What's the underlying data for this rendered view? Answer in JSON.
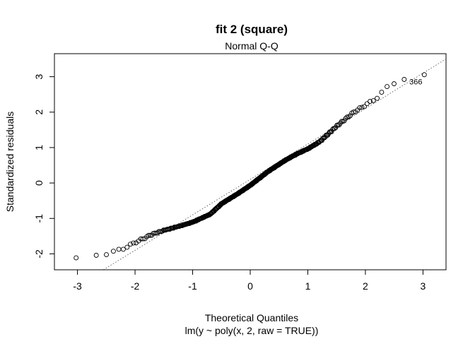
{
  "chart_data": {
    "type": "scatter",
    "title": "fit 2 (square)",
    "subtitle": "Normal Q-Q",
    "xlabel": "Theoretical Quantiles",
    "xlabel_sub": "lm(y ~ poly(x, 2, raw = TRUE))",
    "ylabel": "Standardized residuals",
    "xlim": [
      -3.4,
      3.4
    ],
    "ylim": [
      -2.45,
      3.65
    ],
    "x_ticks": [
      -3,
      -2,
      -1,
      0,
      1,
      2,
      3
    ],
    "y_ticks": [
      -2,
      -1,
      0,
      1,
      2,
      3
    ],
    "grid": false,
    "reference_line": {
      "style": "dotted",
      "intercept": 0.1,
      "slope": 1.0
    },
    "curve_knots": [
      [
        -3.2,
        -2.2
      ],
      [
        -2.8,
        -2.06
      ],
      [
        -2.5,
        -2.0
      ],
      [
        -2.2,
        -1.85
      ],
      [
        -2.0,
        -1.68
      ],
      [
        -1.7,
        -1.45
      ],
      [
        -1.5,
        -1.35
      ],
      [
        -1.2,
        -1.22
      ],
      [
        -1.0,
        -1.12
      ],
      [
        -0.7,
        -0.9
      ],
      [
        -0.5,
        -0.6
      ],
      [
        -0.2,
        -0.3
      ],
      [
        0.0,
        -0.08
      ],
      [
        0.3,
        0.3
      ],
      [
        0.6,
        0.62
      ],
      [
        0.8,
        0.8
      ],
      [
        1.0,
        0.95
      ],
      [
        1.2,
        1.15
      ],
      [
        1.5,
        1.6
      ],
      [
        1.8,
        2.0
      ],
      [
        2.0,
        2.2
      ],
      [
        2.2,
        2.4
      ],
      [
        2.4,
        2.75
      ],
      [
        2.6,
        2.9
      ],
      [
        2.8,
        2.98
      ],
      [
        3.0,
        3.03
      ],
      [
        3.2,
        3.03
      ]
    ],
    "n_points": 400,
    "labeled_points": [
      {
        "label": "366",
        "x": 3.05,
        "y": 3.0
      }
    ]
  }
}
